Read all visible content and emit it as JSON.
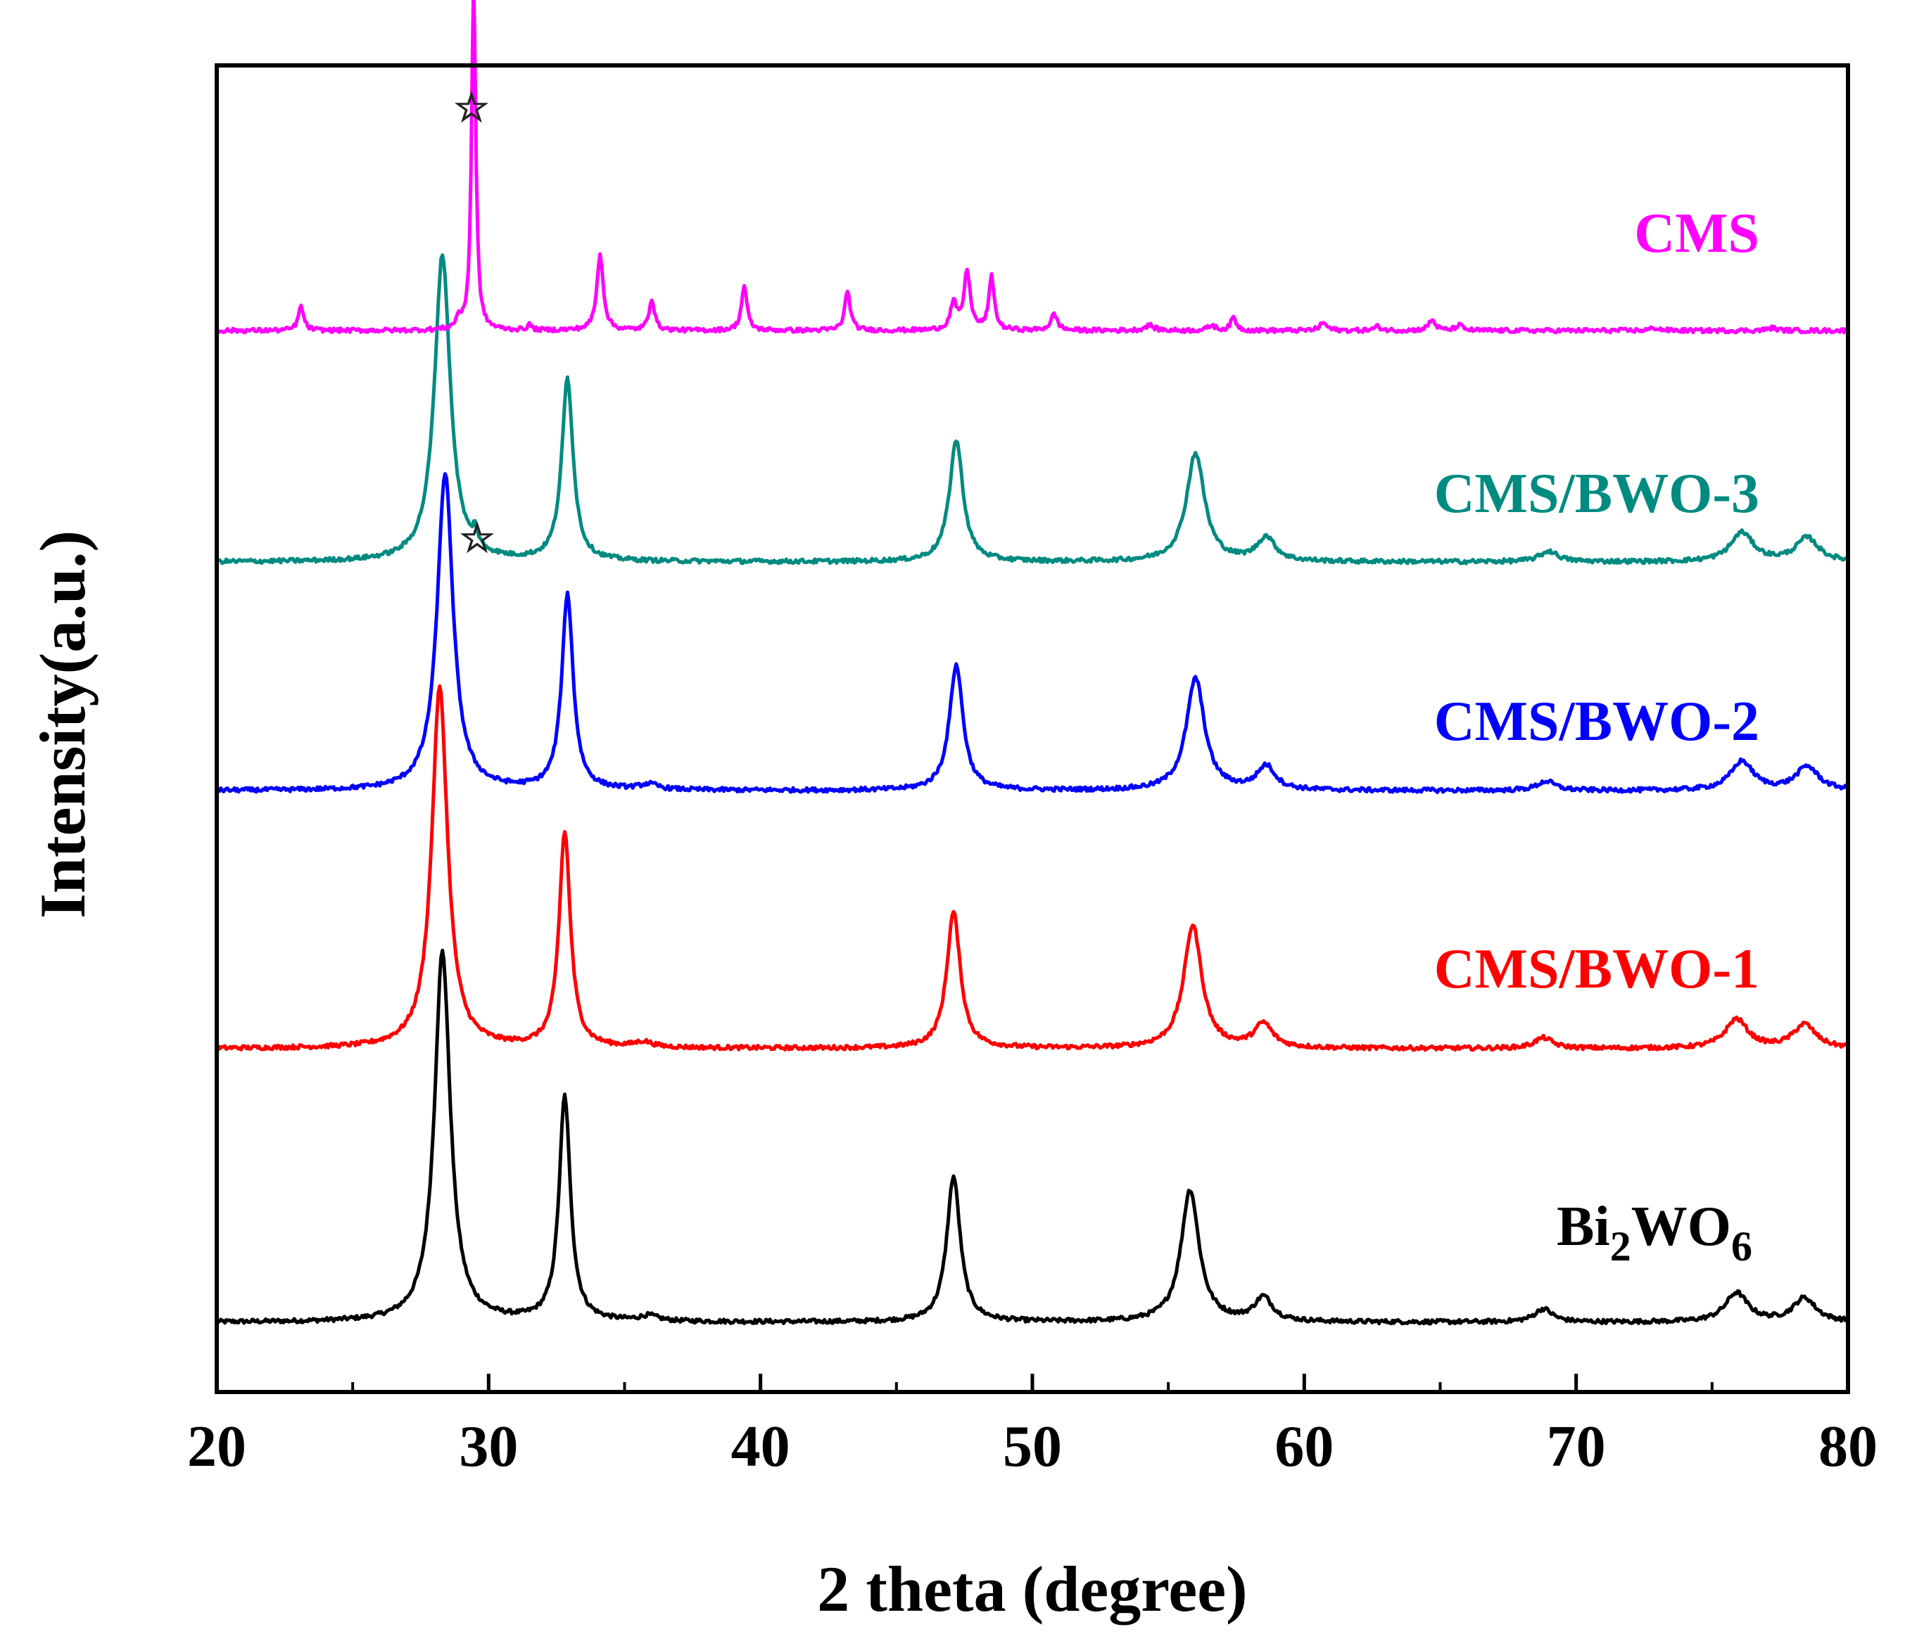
{
  "chart_data": {
    "type": "line",
    "title": "",
    "xlabel": "2 theta (degree)",
    "ylabel": "Intensity(a.u.)",
    "xlim": [
      20,
      80
    ],
    "xticks": [
      20,
      30,
      40,
      50,
      60,
      70,
      80
    ],
    "ylim": [
      0,
      1
    ],
    "grid": false,
    "y_ticks_shown": false,
    "series": [
      {
        "name": "Bi2WO6",
        "label_main": "Bi",
        "label_sub1": "2",
        "label_mid": "WO",
        "label_sub2": "6",
        "color": "#000000",
        "baseline": 0.0,
        "peaks": [
          [
            28.3,
            0.28,
            0.35
          ],
          [
            32.8,
            0.17,
            0.25
          ],
          [
            35.9,
            0.004,
            0.4
          ],
          [
            47.1,
            0.11,
            0.3
          ],
          [
            55.8,
            0.1,
            0.4
          ],
          [
            58.5,
            0.018,
            0.4
          ],
          [
            68.8,
            0.01,
            0.4
          ],
          [
            75.9,
            0.022,
            0.5
          ],
          [
            78.4,
            0.018,
            0.5
          ]
        ]
      },
      {
        "name": "CMS/BWO-1",
        "color": "#ff0000",
        "baseline": 0.207,
        "peaks": [
          [
            28.2,
            0.273,
            0.35
          ],
          [
            32.8,
            0.163,
            0.25
          ],
          [
            35.7,
            0.004,
            0.4
          ],
          [
            47.1,
            0.103,
            0.3
          ],
          [
            55.9,
            0.093,
            0.4
          ],
          [
            58.5,
            0.018,
            0.4
          ],
          [
            68.8,
            0.008,
            0.4
          ],
          [
            75.9,
            0.022,
            0.5
          ],
          [
            78.4,
            0.018,
            0.5
          ]
        ]
      },
      {
        "name": "CMS/BWO-2",
        "color": "#0000ff",
        "baseline": 0.402,
        "peaks": [
          [
            28.4,
            0.24,
            0.35
          ],
          [
            32.9,
            0.148,
            0.25
          ],
          [
            35.9,
            0.004,
            0.4
          ],
          [
            47.2,
            0.095,
            0.3
          ],
          [
            56.0,
            0.085,
            0.4
          ],
          [
            58.6,
            0.018,
            0.4
          ],
          [
            68.9,
            0.007,
            0.4
          ],
          [
            76.1,
            0.022,
            0.5
          ],
          [
            78.5,
            0.018,
            0.5
          ]
        ]
      },
      {
        "name": "CMS/BWO-3",
        "color": "#008b80",
        "baseline": 0.575,
        "peaks": [
          [
            28.3,
            0.232,
            0.35
          ],
          [
            29.5,
            0.012,
            0.1
          ],
          [
            32.9,
            0.138,
            0.25
          ],
          [
            47.2,
            0.092,
            0.3
          ],
          [
            56.0,
            0.082,
            0.4
          ],
          [
            58.6,
            0.018,
            0.4
          ],
          [
            69.0,
            0.008,
            0.4
          ],
          [
            76.1,
            0.022,
            0.5
          ],
          [
            78.5,
            0.018,
            0.5
          ]
        ]
      },
      {
        "name": "CMS",
        "color": "#ff00ff",
        "baseline": 0.75,
        "peaks": [
          [
            23.1,
            0.018,
            0.12
          ],
          [
            28.9,
            0.008,
            0.1
          ],
          [
            29.45,
            0.268,
            0.09
          ],
          [
            31.5,
            0.004,
            0.1
          ],
          [
            34.1,
            0.058,
            0.14
          ],
          [
            36.0,
            0.024,
            0.12
          ],
          [
            39.4,
            0.034,
            0.12
          ],
          [
            43.2,
            0.03,
            0.12
          ],
          [
            47.1,
            0.02,
            0.14
          ],
          [
            47.6,
            0.044,
            0.14
          ],
          [
            48.5,
            0.04,
            0.12
          ],
          [
            50.8,
            0.012,
            0.15
          ],
          [
            54.3,
            0.004,
            0.2
          ],
          [
            56.6,
            0.004,
            0.15
          ],
          [
            57.4,
            0.01,
            0.12
          ],
          [
            60.7,
            0.006,
            0.15
          ],
          [
            62.7,
            0.003,
            0.15
          ],
          [
            64.7,
            0.008,
            0.15
          ],
          [
            65.7,
            0.004,
            0.15
          ],
          [
            72.9,
            0.002,
            0.2
          ],
          [
            77.2,
            0.002,
            0.2
          ]
        ]
      }
    ],
    "annotations": [
      {
        "text": "☆",
        "x": 29.5,
        "series": "CMS",
        "note": "above main CMS peak"
      },
      {
        "text": "☆",
        "x": 29.6,
        "series": "CMS/BWO-3",
        "note": "minor CMS peak in composite"
      }
    ]
  }
}
